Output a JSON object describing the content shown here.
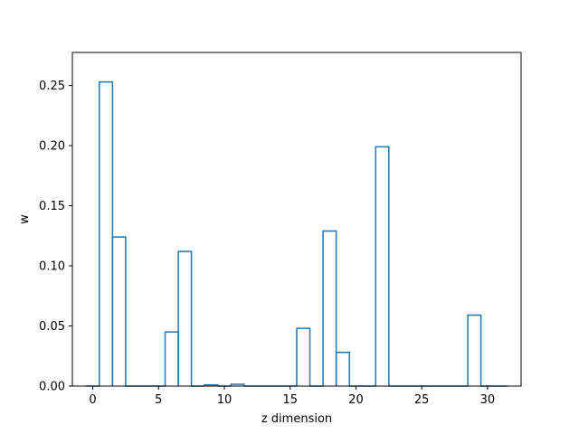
{
  "chart_data": {
    "type": "bar",
    "style": "step-histogram",
    "xlabel": "z dimension",
    "ylabel": "w",
    "xlim": [
      -1.55,
      32.55
    ],
    "ylim": [
      0,
      0.2775
    ],
    "xticks": [
      0,
      5,
      10,
      15,
      20,
      25,
      30
    ],
    "yticks": [
      0.0,
      0.05,
      0.1,
      0.15,
      0.2,
      0.25
    ],
    "grid": false,
    "legend": "none",
    "line_color": "#1f77b4",
    "bins": [
      {
        "x": 0,
        "value": 0.0
      },
      {
        "x": 1,
        "value": 0.253
      },
      {
        "x": 2,
        "value": 0.124
      },
      {
        "x": 3,
        "value": 0.0
      },
      {
        "x": 4,
        "value": 0.0
      },
      {
        "x": 5,
        "value": 0.0
      },
      {
        "x": 6,
        "value": 0.045
      },
      {
        "x": 7,
        "value": 0.112
      },
      {
        "x": 8,
        "value": 0.0
      },
      {
        "x": 9,
        "value": 0.001
      },
      {
        "x": 10,
        "value": 0.0
      },
      {
        "x": 11,
        "value": 0.0015
      },
      {
        "x": 12,
        "value": 0.0
      },
      {
        "x": 13,
        "value": 0.0
      },
      {
        "x": 14,
        "value": 0.0
      },
      {
        "x": 15,
        "value": 0.0
      },
      {
        "x": 16,
        "value": 0.048
      },
      {
        "x": 17,
        "value": 0.0
      },
      {
        "x": 18,
        "value": 0.129
      },
      {
        "x": 19,
        "value": 0.028
      },
      {
        "x": 20,
        "value": 0.0
      },
      {
        "x": 21,
        "value": 0.0
      },
      {
        "x": 22,
        "value": 0.199
      },
      {
        "x": 23,
        "value": 0.0
      },
      {
        "x": 24,
        "value": 0.0
      },
      {
        "x": 25,
        "value": 0.0
      },
      {
        "x": 26,
        "value": 0.0
      },
      {
        "x": 27,
        "value": 0.0
      },
      {
        "x": 28,
        "value": 0.0
      },
      {
        "x": 29,
        "value": 0.059
      },
      {
        "x": 30,
        "value": 0.0
      },
      {
        "x": 31,
        "value": 0.0
      }
    ]
  }
}
